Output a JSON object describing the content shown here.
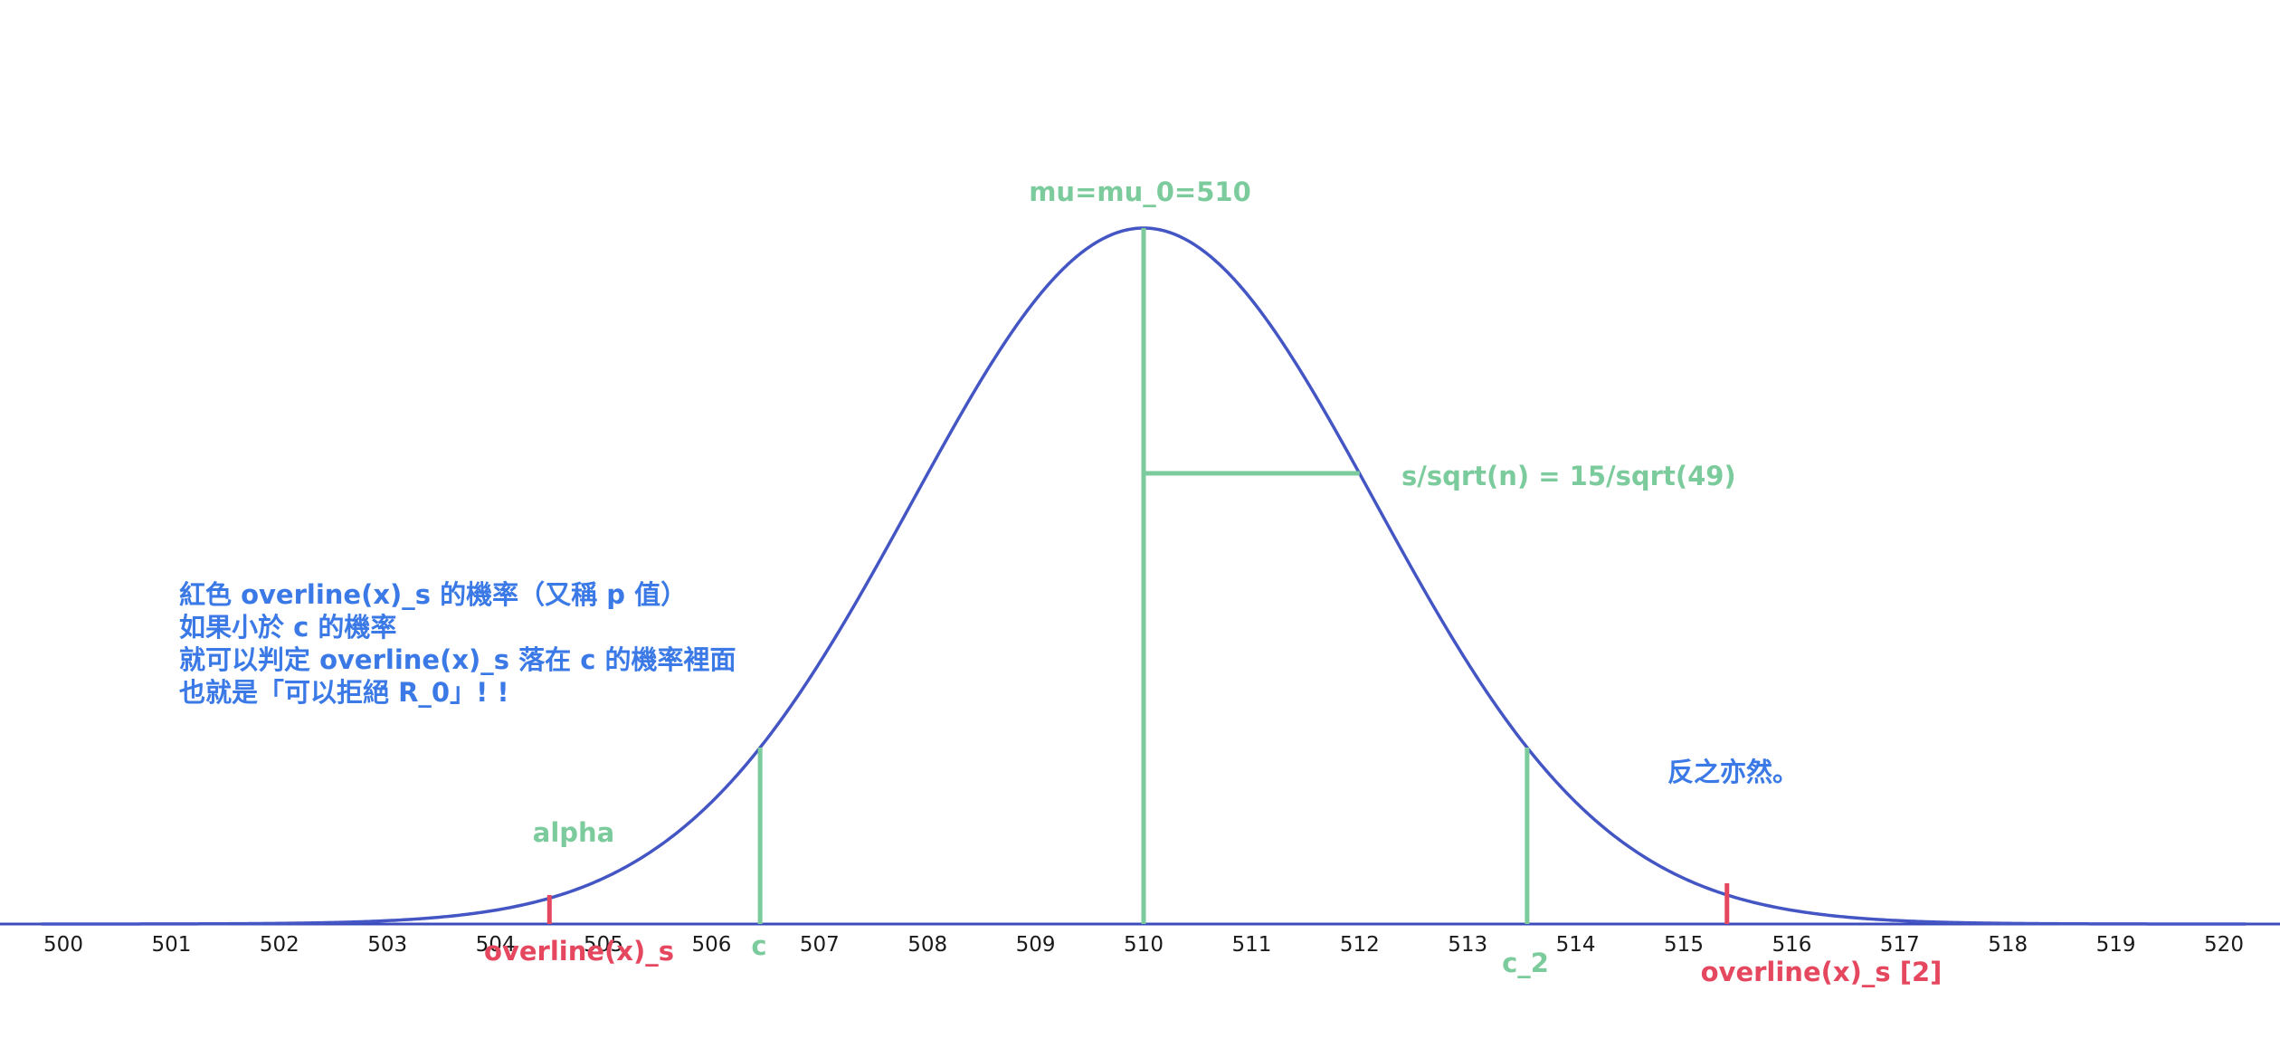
{
  "colors": {
    "curve": "#4455c4",
    "green": "#7ccb9c",
    "red": "#e5475f",
    "blue": "#3a79e6",
    "axis": "#3d4cbc",
    "tick_text": "#1a1a1a"
  },
  "axis": {
    "min": 500,
    "max": 520,
    "ticks": [
      "500",
      "501",
      "502",
      "503",
      "504",
      "505",
      "506",
      "507",
      "508",
      "509",
      "510",
      "511",
      "512",
      "513",
      "514",
      "515",
      "516",
      "517",
      "518",
      "519",
      "520"
    ]
  },
  "distribution": {
    "mean": 510,
    "sd": 2.1429
  },
  "markers": {
    "mu": {
      "x": 510,
      "label": "mu=mu_0=510"
    },
    "sd_bar": {
      "from": 510,
      "to": 512,
      "label": "s/sqrt(n) = 15/sqrt(49)"
    },
    "c": {
      "x": 506.45,
      "label": "c"
    },
    "c2": {
      "x": 513.55,
      "label": "c_2"
    },
    "xs": {
      "x": 504.5,
      "label": "overline(x)_s"
    },
    "xs2": {
      "x": 515.4,
      "label": "overline(x)_s [2]"
    }
  },
  "labels": {
    "alpha": "alpha",
    "note_lines": [
      "紅色 overline(x)_s 的機率（又稱 p 值）",
      "如果小於 c 的機率",
      "就可以判定 overline(x)_s 落在 c 的機率裡面",
      "也就是「可以拒絕 R_0」! !"
    ],
    "vice_versa": "反之亦然。"
  }
}
